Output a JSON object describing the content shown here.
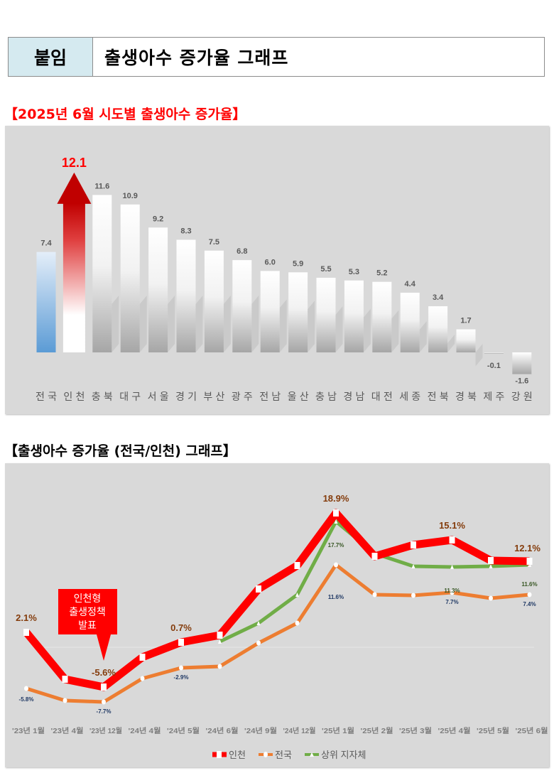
{
  "header": {
    "tag": "붙임",
    "title": "출생아수 증가율 그래프"
  },
  "colors": {
    "incheon": "#ff0000",
    "national": "#ed7d31",
    "top_regions": "#70ad47",
    "label_brown": "#843c0c",
    "label_navy": "#1f3864",
    "title_red": "#ff0000"
  },
  "chart_data": [
    {
      "type": "bar",
      "title": "【2025년 6월 시도별 출생아수 증가율】",
      "categories": [
        "전국",
        "인천",
        "충북",
        "대구",
        "서울",
        "경기",
        "부산",
        "광주",
        "전남",
        "울산",
        "충남",
        "경남",
        "대전",
        "세종",
        "전북",
        "경북",
        "제주",
        "강원"
      ],
      "values": [
        7.4,
        12.1,
        11.6,
        10.9,
        9.2,
        8.3,
        7.5,
        6.8,
        6.0,
        5.9,
        5.5,
        5.3,
        5.2,
        4.4,
        3.4,
        1.7,
        -0.1,
        -1.6
      ],
      "value_labels": [
        "7.4",
        "12.1",
        "11.6",
        "10.9",
        "9.2",
        "8.3",
        "7.5",
        "6.8",
        "6.0",
        "5.9",
        "5.5",
        "5.3",
        "5.2",
        "4.4",
        "3.4",
        "1.7",
        "-0.1",
        "-1.6"
      ],
      "highlight": "인천",
      "ylim": [
        -2,
        13
      ],
      "grid": false
    },
    {
      "type": "line",
      "title": "【출생아수 증가율 (전국/인천) 그래프】",
      "categories": [
        "'23년 1월",
        "'23년 4월",
        "'23년 12월",
        "'24년 4월",
        "'24년 5월",
        "'24년 6월",
        "'24년 9월",
        "'24년 12월",
        "'25년 1월",
        "'25년 2월",
        "'25년 3월",
        "'25년 4월",
        "'25년 5월",
        "'25년 6월"
      ],
      "series": [
        {
          "name": "인천",
          "values": [
            2.1,
            -4.5,
            -5.6,
            -1.4,
            0.7,
            1.7,
            8.2,
            11.5,
            18.9,
            12.8,
            14.4,
            15.1,
            12.2,
            12.1
          ],
          "labels": {
            "0": "2.1%",
            "2": "-5.6%",
            "4": "0.7%",
            "8": "18.9%",
            "11": "15.1%",
            "13": "12.1%"
          }
        },
        {
          "name": "전국",
          "values": [
            -5.8,
            -7.5,
            -7.7,
            -4.4,
            -2.9,
            -2.7,
            0.6,
            3.4,
            11.6,
            7.4,
            7.3,
            7.7,
            6.9,
            7.4
          ],
          "labels": {
            "0": "-5.8%",
            "2": "-7.7%",
            "4": "-2.9%",
            "8": "11.6%",
            "11": "7.7%",
            "13": "7.4%"
          }
        },
        {
          "name": "상위 지자체",
          "values": [
            null,
            null,
            null,
            null,
            null,
            0.8,
            3.4,
            7.4,
            17.7,
            13.2,
            11.4,
            11.3,
            11.4,
            11.6
          ],
          "labels": {
            "8": "17.7%",
            "11": "11.3%",
            "13": "11.6%"
          }
        }
      ],
      "annotation": {
        "lines": [
          "인천형",
          "출생정책",
          "발표"
        ],
        "points_to": "'23년 12월"
      },
      "ylim": [
        -10,
        22
      ],
      "legend": "bottom"
    }
  ]
}
